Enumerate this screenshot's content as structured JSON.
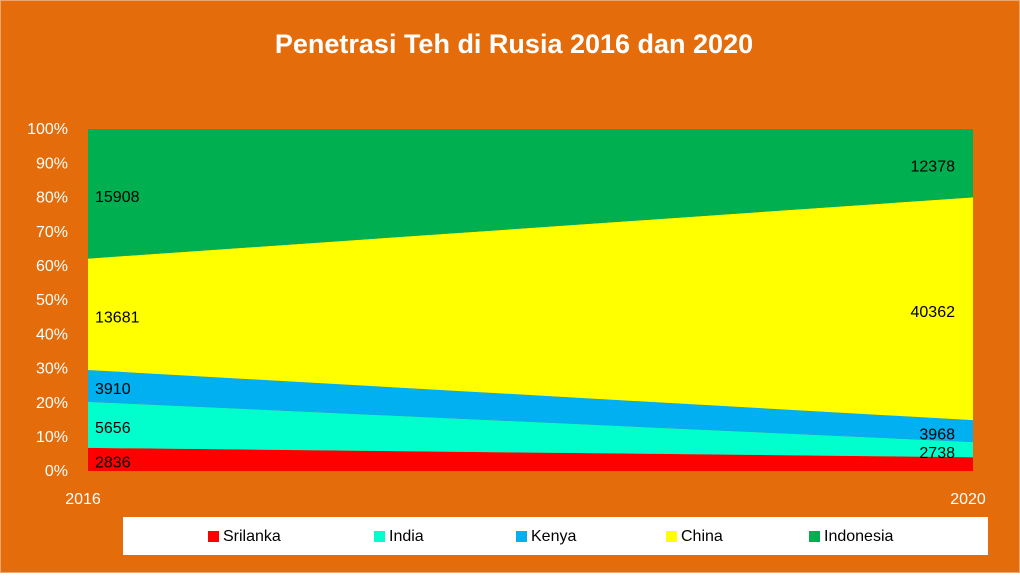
{
  "chart_data": {
    "type": "stacked_area_percent",
    "title": "Penetrasi Teh di Rusia 2016 dan 2020",
    "x": [
      2016,
      2020
    ],
    "xlim": [
      2016,
      2020
    ],
    "xticks": [
      2016,
      2020
    ],
    "ylim": [
      0,
      100
    ],
    "yticks": [
      {
        "value": 0,
        "label": "0%"
      },
      {
        "value": 10,
        "label": "10%"
      },
      {
        "value": 20,
        "label": "20%"
      },
      {
        "value": 30,
        "label": "30%"
      },
      {
        "value": 40,
        "label": "40%"
      },
      {
        "value": 50,
        "label": "50%"
      },
      {
        "value": 60,
        "label": "60%"
      },
      {
        "value": 70,
        "label": "70%"
      },
      {
        "value": 80,
        "label": "80%"
      },
      {
        "value": 90,
        "label": "90%"
      },
      {
        "value": 100,
        "label": "100%"
      }
    ],
    "legend": "bottom",
    "series": [
      {
        "name": "Srilanka",
        "color": "#ff0000",
        "values": [
          2836,
          2500
        ],
        "value_labels": [
          "2836",
          null
        ]
      },
      {
        "name": "India",
        "color": "#00ffcc",
        "values": [
          5656,
          2738
        ]
      },
      {
        "name": "Kenya",
        "color": "#00b0f0",
        "values": [
          3910,
          3968
        ]
      },
      {
        "name": "China",
        "color": "#ffff00",
        "values": [
          13681,
          40362
        ]
      },
      {
        "name": "Indonesia",
        "color": "#00b050",
        "values": [
          15908,
          12378
        ]
      }
    ]
  }
}
